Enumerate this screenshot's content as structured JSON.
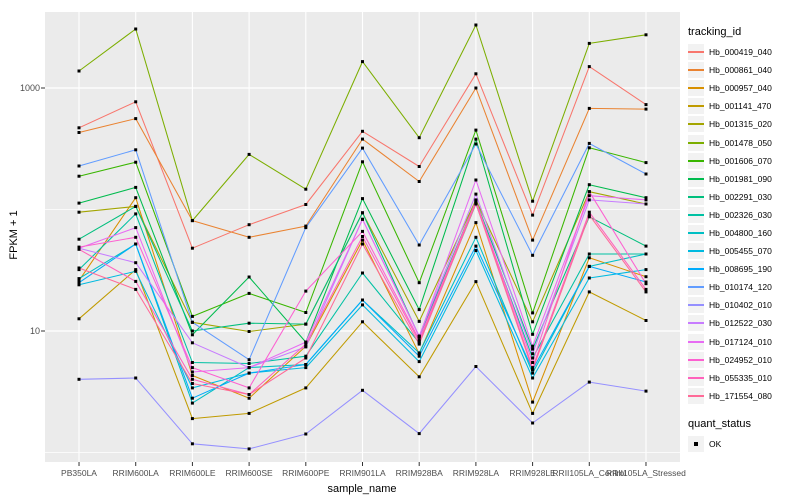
{
  "figure": {
    "background": "#FFFFFF",
    "panel_background": "#EBEBEB",
    "grid_color": "#FFFFFF",
    "tick_mark_color": "#333333",
    "tick_label_color": "#4D4D4D",
    "legend_key_background": "#F2F2F2"
  },
  "legend": {
    "tracking_title": "tracking_id",
    "quant_title": "quant_status",
    "quant_items": [
      {
        "label": "OK",
        "shape": "square",
        "color": "#000000"
      }
    ]
  },
  "chart_data": {
    "type": "line",
    "title": "",
    "xlabel": "sample_name",
    "ylabel": "FPKM + 1",
    "y_scale": "log10",
    "ylim": [
      0.85,
      4200
    ],
    "grid": true,
    "legend_position": "right",
    "y_major_ticks": [
      {
        "label": "1000",
        "value": 1000
      },
      {
        "label": "10",
        "value": 10
      }
    ],
    "y_minor_gridlines": [
      100,
      1
    ],
    "point_marker": {
      "shape": "square",
      "color": "#000000",
      "label": "OK"
    },
    "categories": [
      "PB350LA",
      "RRIM600LA",
      "RRIM600LE",
      "RRIM600SE",
      "RRIM600PE",
      "RRIM901LA",
      "RRIM928BA",
      "RRIM928LA",
      "RRIM928LE",
      "RRII105LA_Control",
      "RRII105LA_Stressed"
    ],
    "series": [
      {
        "name": "Hb_000419_040",
        "color": "#F8766D",
        "values": [
          470,
          770,
          48,
          75,
          110,
          440,
          226,
          1310,
          90,
          1500,
          730
        ]
      },
      {
        "name": "Hb_000861_040",
        "color": "#EA8331",
        "values": [
          430,
          560,
          81,
          59,
          73,
          380,
          170,
          1000,
          56,
          680,
          670
        ]
      },
      {
        "name": "Hb_000957_040",
        "color": "#D89000",
        "values": [
          26,
          125,
          4.3,
          2.8,
          7.5,
          56,
          6.5,
          78,
          2.6,
          40,
          28
        ]
      },
      {
        "name": "Hb_001141_470",
        "color": "#C09B00",
        "values": [
          12.6,
          32,
          1.9,
          2.1,
          3.4,
          11.9,
          4.2,
          25.5,
          2.1,
          21,
          12.2
        ]
      },
      {
        "name": "Hb_001315_020",
        "color": "#A3A500",
        "values": [
          95,
          106,
          11.8,
          9.9,
          11.4,
          94,
          12,
          120,
          11.9,
          140,
          111
        ]
      },
      {
        "name": "Hb_001478_050",
        "color": "#7CAE00",
        "values": [
          1380,
          3060,
          81,
          284,
          147,
          1650,
          390,
          3300,
          117,
          2330,
          2740
        ]
      },
      {
        "name": "Hb_001606_070",
        "color": "#39B600",
        "values": [
          188,
          245,
          13.2,
          20.4,
          14.2,
          247,
          25,
          450,
          14.1,
          322,
          243
        ]
      },
      {
        "name": "Hb_001981_090",
        "color": "#00BB4E",
        "values": [
          113,
          152,
          9.3,
          27.8,
          8.1,
          123,
          15,
          380,
          9.4,
          160,
          125
        ]
      },
      {
        "name": "Hb_002291_030",
        "color": "#00BF7D",
        "values": [
          57,
          106,
          10,
          11.6,
          11.4,
          94,
          9,
          118,
          7.1,
          87,
          50
        ]
      },
      {
        "name": "Hb_002326_030",
        "color": "#00C1A3",
        "values": [
          32,
          92,
          5.5,
          5.4,
          6.2,
          30,
          8,
          111,
          6.0,
          43,
          43
        ]
      },
      {
        "name": "Hb_004800_160",
        "color": "#00BFC4",
        "values": [
          27,
          52,
          2.55,
          5.0,
          5.3,
          18,
          6.6,
          59,
          4.5,
          34,
          43
        ]
      },
      {
        "name": "Hb_005455_070",
        "color": "#00BAE0",
        "values": [
          24,
          31,
          3.4,
          4.5,
          5.0,
          16.4,
          5.6,
          46,
          4.1,
          27.3,
          32
        ]
      },
      {
        "name": "Hb_008695_190",
        "color": "#00ACFC",
        "values": [
          25,
          52,
          2.8,
          4.5,
          5.3,
          18,
          6.2,
          50,
          4.8,
          34,
          25.3
        ]
      },
      {
        "name": "Hb_010174_120",
        "color": "#619CFF",
        "values": [
          228,
          310,
          11.8,
          5.8,
          71,
          320,
          51,
          346,
          42,
          350,
          196
        ]
      },
      {
        "name": "Hb_010402_010",
        "color": "#9590FF",
        "values": [
          4.0,
          4.1,
          1.18,
          1.07,
          1.42,
          3.25,
          1.43,
          5.1,
          1.75,
          3.8,
          3.2
        ]
      },
      {
        "name": "Hb_012522_030",
        "color": "#C77CFF",
        "values": [
          48,
          36.5,
          8.0,
          5.0,
          7.4,
          83,
          9.1,
          134,
          6.5,
          120,
          111
        ]
      },
      {
        "name": "Hb_017124_010",
        "color": "#E76BF3",
        "values": [
          48,
          71,
          4.6,
          5.0,
          8.1,
          83,
          9.0,
          175,
          7.5,
          130,
          120
        ]
      },
      {
        "name": "Hb_024952_010",
        "color": "#FD61D1",
        "values": [
          49,
          59,
          5.0,
          3.4,
          21.3,
          66,
          8.5,
          118,
          5.5,
          140,
          24.5
        ]
      },
      {
        "name": "Hb_055335_010",
        "color": "#FF62BC",
        "values": [
          47,
          25.6,
          4.0,
          3.0,
          7.8,
          60,
          8.2,
          115,
          5.0,
          95,
          22
        ]
      },
      {
        "name": "Hb_171554_080",
        "color": "#FF6A98",
        "values": [
          33,
          22,
          3.7,
          3.0,
          6.0,
          52,
          7.8,
          112,
          4.8,
          90,
          21
        ]
      }
    ]
  }
}
